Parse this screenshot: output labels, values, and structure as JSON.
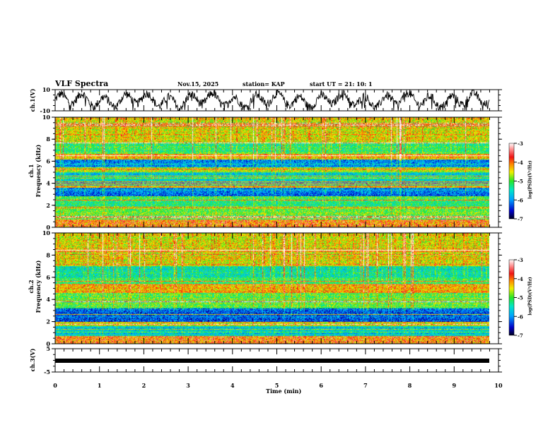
{
  "header": {
    "title": "VLF Spectra",
    "date": "Nov.15, 2025",
    "station": "station= KAP",
    "start_ut": "start  UT =   21: 10: 1"
  },
  "chart_data": [
    {
      "type": "line",
      "name": "ch1-waveform",
      "ylabel": "ch.1(V)",
      "ylim": [
        -10,
        10
      ],
      "y_tick_labels": [
        "10",
        "-10"
      ],
      "xlim": [
        0,
        10
      ],
      "data_end_min": 9.8,
      "description": "noisy waveform oscillating roughly between -8 and 8 V with ~20 quasi-periodic humps"
    },
    {
      "type": "heatmap",
      "name": "ch1-spectrogram",
      "ylabel": "ch.1\nFrequency (kHz)",
      "ylabel_line1": "ch.1",
      "ylabel_line2": "Frequency (kHz)",
      "ylim": [
        0,
        10
      ],
      "y_tick_labels": [
        "0",
        "2",
        "4",
        "6",
        "8",
        "10"
      ],
      "xlim": [
        0,
        10
      ],
      "data_end_min": 9.8,
      "colorbar": {
        "label": "log(PSD)(V²/Hz)",
        "range": [
          -7,
          -3
        ],
        "tick_labels": [
          "-3",
          "-4",
          "-5",
          "-6",
          "-7"
        ]
      },
      "band_profile_khz": [
        {
          "f": [
            0.0,
            0.6
          ],
          "level": -3.9
        },
        {
          "f": [
            0.6,
            1.8
          ],
          "level": -4.9
        },
        {
          "f": [
            1.8,
            2.8
          ],
          "level": -5.1
        },
        {
          "f": [
            2.8,
            3.6
          ],
          "level": -6.2
        },
        {
          "f": [
            3.6,
            3.8
          ],
          "level": -4.3
        },
        {
          "f": [
            3.8,
            5.0
          ],
          "level": -5.7
        },
        {
          "f": [
            5.0,
            5.4
          ],
          "level": -4.6
        },
        {
          "f": [
            5.4,
            6.2
          ],
          "level": -6.0
        },
        {
          "f": [
            6.2,
            6.6
          ],
          "level": -4.4
        },
        {
          "f": [
            6.6,
            7.6
          ],
          "level": -5.2
        },
        {
          "f": [
            7.6,
            10.0
          ],
          "level": -4.6
        }
      ]
    },
    {
      "type": "heatmap",
      "name": "ch2-spectrogram",
      "ylabel_line1": "ch.2",
      "ylabel_line2": "Frequency (kHz)",
      "ylim": [
        0,
        10
      ],
      "y_tick_labels": [
        "0",
        "2",
        "4",
        "6",
        "8",
        "10"
      ],
      "xlim": [
        0,
        10
      ],
      "data_end_min": 9.8,
      "colorbar": {
        "label": "log(PSD)(V²/Hz)",
        "range": [
          -7,
          -3
        ],
        "tick_labels": [
          "-3",
          "-4",
          "-5",
          "-6",
          "-7"
        ]
      },
      "band_profile_khz": [
        {
          "f": [
            0.0,
            0.5
          ],
          "level": -4.2
        },
        {
          "f": [
            0.5,
            1.6
          ],
          "level": -5.7
        },
        {
          "f": [
            1.6,
            2.0
          ],
          "level": -4.5
        },
        {
          "f": [
            2.0,
            3.2
          ],
          "level": -6.2
        },
        {
          "f": [
            3.2,
            4.6
          ],
          "level": -5.0
        },
        {
          "f": [
            4.6,
            5.4
          ],
          "level": -4.3
        },
        {
          "f": [
            5.4,
            6.0
          ],
          "level": -5.2
        },
        {
          "f": [
            6.0,
            7.0
          ],
          "level": -5.5
        },
        {
          "f": [
            7.0,
            10.0
          ],
          "level": -4.5
        }
      ]
    },
    {
      "type": "line",
      "name": "ch3-waveform",
      "ylabel": "ch.3(V)",
      "ylim": [
        -5,
        5
      ],
      "y_tick_labels": [
        "5",
        "-5"
      ],
      "xlim": [
        0,
        10
      ],
      "data_end_min": 9.8,
      "constant_value": 0,
      "description": "thick flat band near 0 V"
    }
  ],
  "x_axis": {
    "label": "Time (min)",
    "tick_labels": [
      "0",
      "1",
      "2",
      "3",
      "4",
      "5",
      "6",
      "7",
      "8",
      "9",
      "10"
    ]
  }
}
